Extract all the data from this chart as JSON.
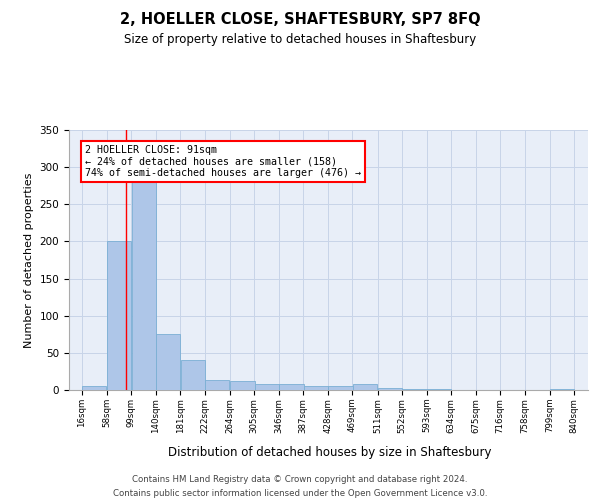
{
  "title": "2, HOELLER CLOSE, SHAFTESBURY, SP7 8FQ",
  "subtitle": "Size of property relative to detached houses in Shaftesbury",
  "xlabel": "Distribution of detached houses by size in Shaftesbury",
  "ylabel": "Number of detached properties",
  "bin_edges": [
    16,
    58,
    99,
    140,
    181,
    222,
    264,
    305,
    346,
    387,
    428,
    469,
    511,
    552,
    593,
    634,
    675,
    716,
    758,
    799,
    840
  ],
  "bar_heights": [
    5,
    200,
    285,
    75,
    40,
    13,
    12,
    8,
    8,
    5,
    5,
    8,
    3,
    2,
    1,
    0,
    0,
    0,
    0,
    1
  ],
  "bar_color": "#aec6e8",
  "bar_edge_color": "#7aafd4",
  "grid_color": "#c8d4e8",
  "background_color": "#e8eef8",
  "red_line_x": 91,
  "annotation_text": "2 HOELLER CLOSE: 91sqm\n← 24% of detached houses are smaller (158)\n74% of semi-detached houses are larger (476) →",
  "annotation_box_color": "white",
  "annotation_box_edge_color": "red",
  "footer_text": "Contains HM Land Registry data © Crown copyright and database right 2024.\nContains public sector information licensed under the Open Government Licence v3.0.",
  "ylim": [
    0,
    350
  ],
  "yticks": [
    0,
    50,
    100,
    150,
    200,
    250,
    300,
    350
  ],
  "fig_width": 6.0,
  "fig_height": 5.0
}
